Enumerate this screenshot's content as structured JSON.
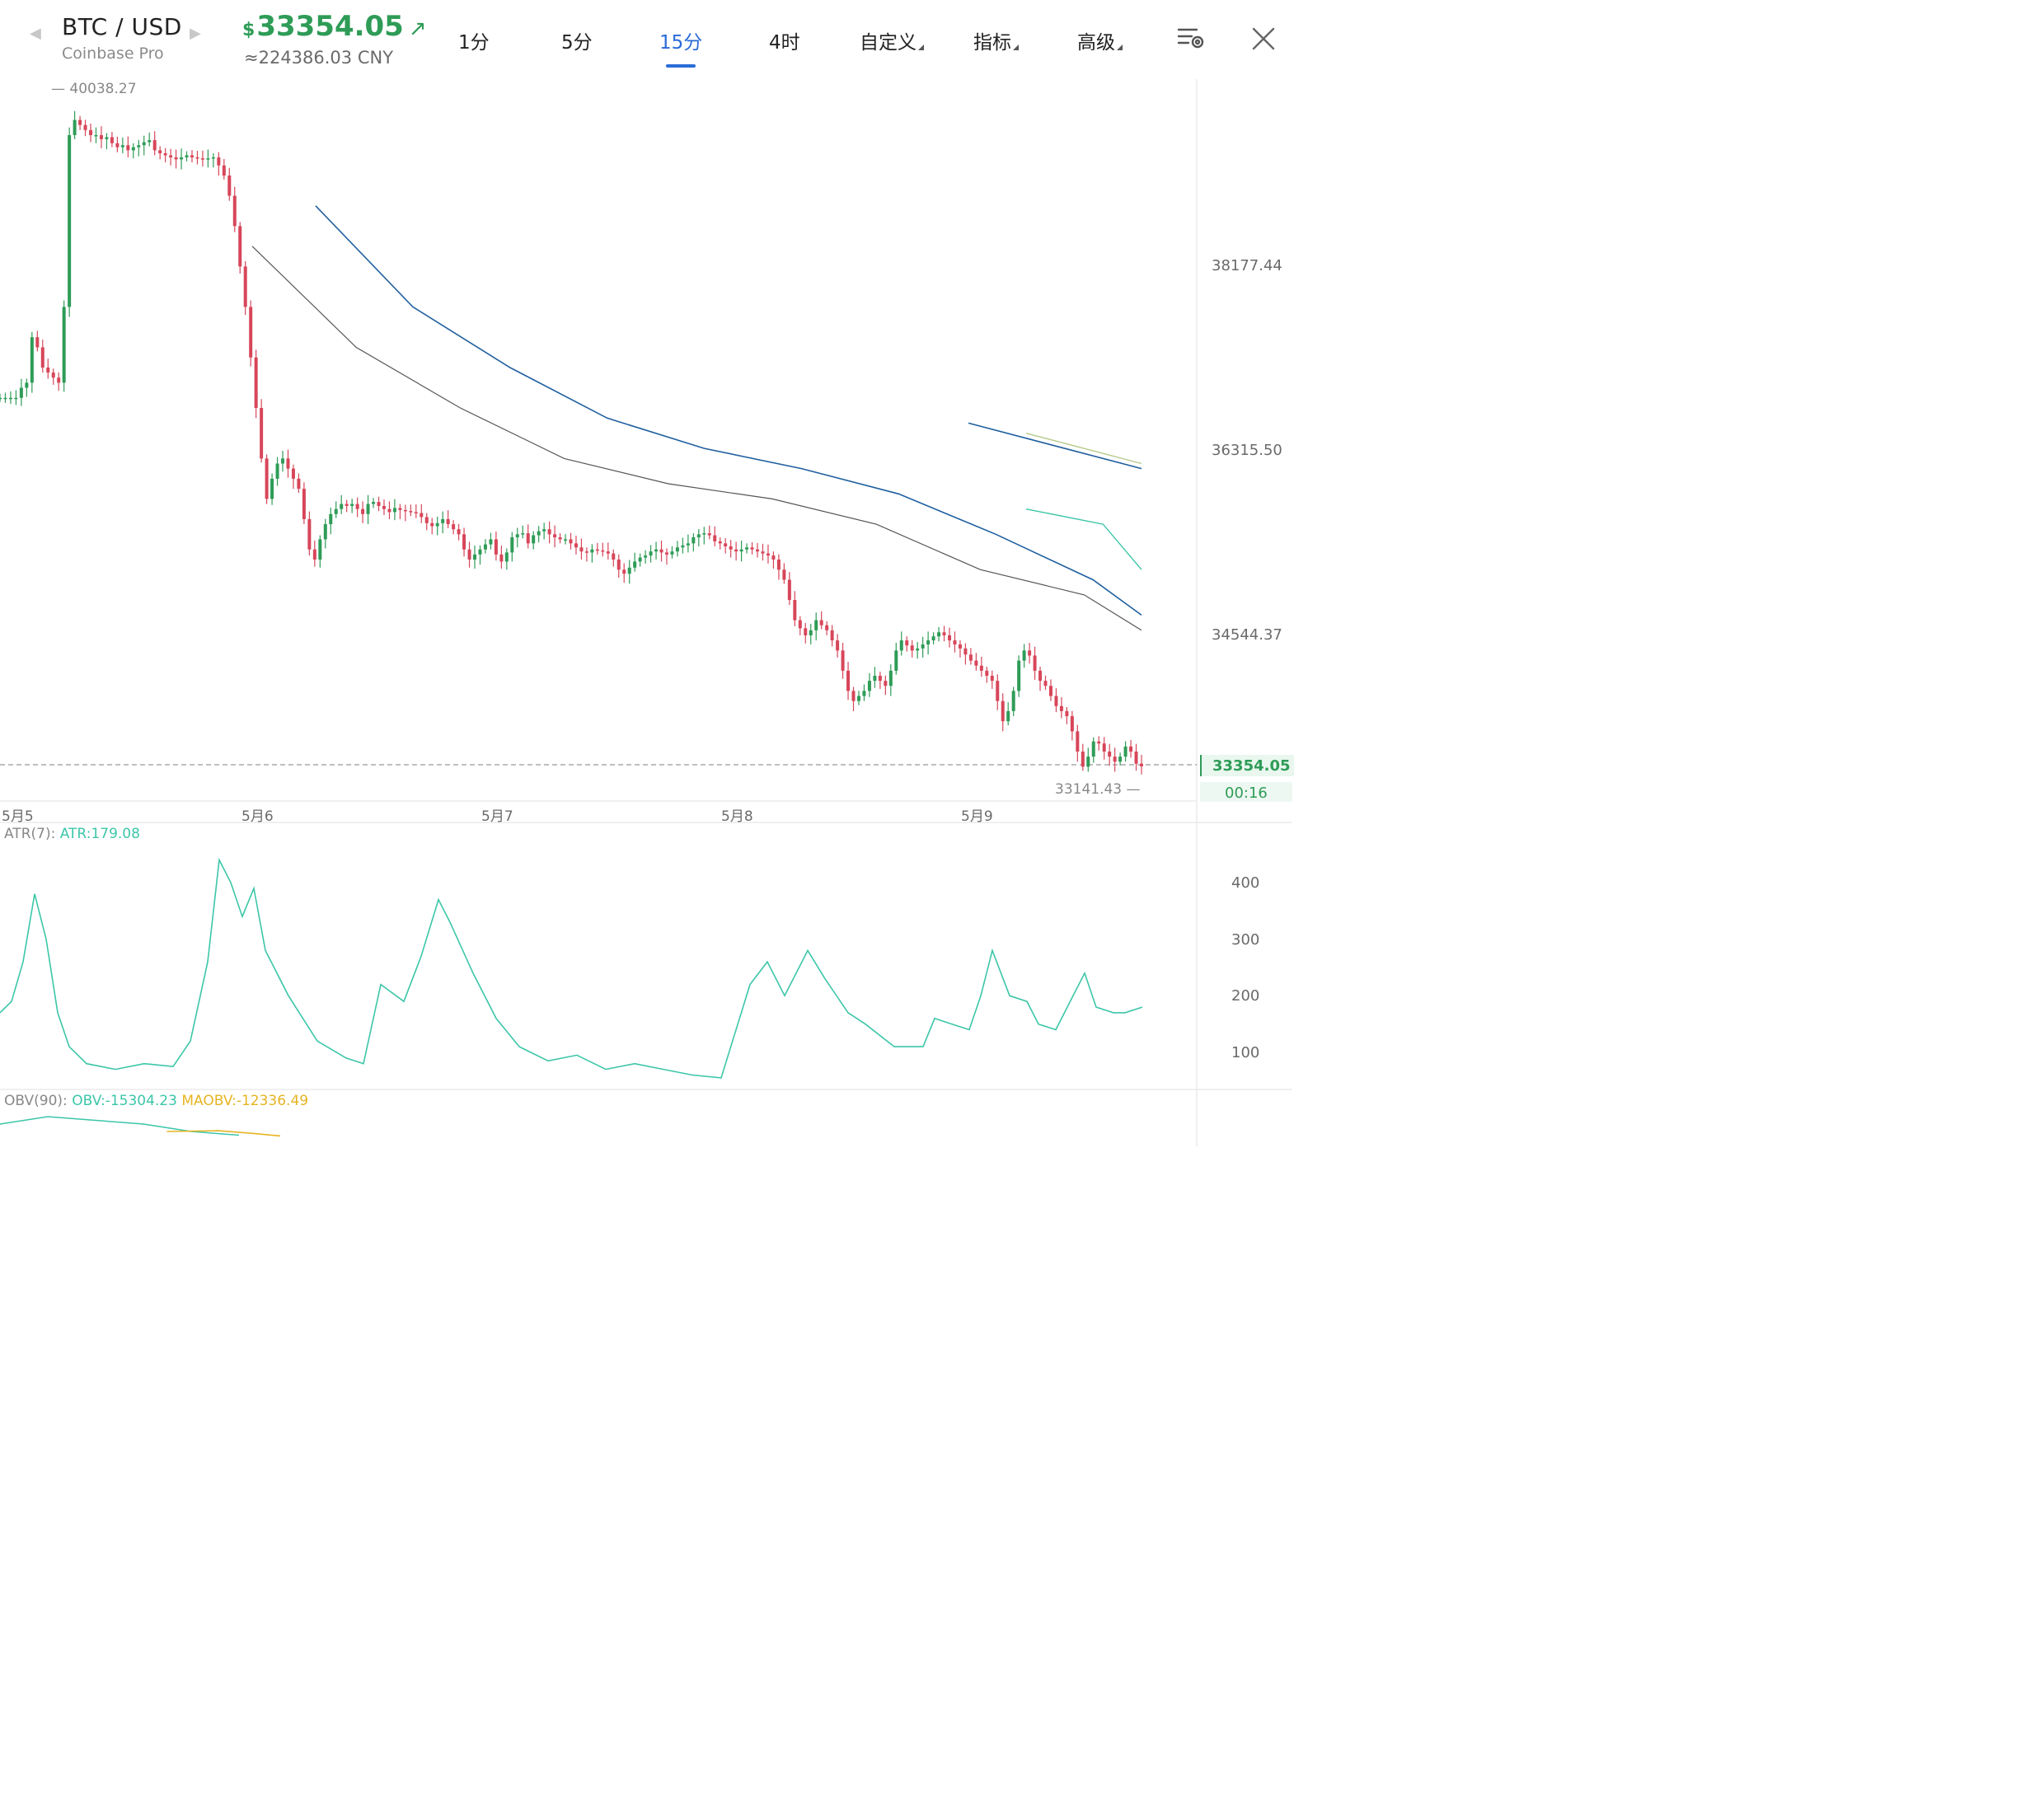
{
  "header": {
    "symbol": "BTC / USD",
    "exchange": "Coinbase Pro",
    "currency_sign": "$",
    "price": "33354.05",
    "price_color": "#2e9c57",
    "trend_icon": "arrow-up-right-icon",
    "cny_value": "≈224386.03 CNY"
  },
  "tabs": [
    {
      "label": "1分",
      "active": false
    },
    {
      "label": "5分",
      "active": false
    },
    {
      "label": "15分",
      "active": true
    },
    {
      "label": "4时",
      "active": false
    },
    {
      "label": "自定义",
      "active": false,
      "dropdown": true
    },
    {
      "label": "指标",
      "active": false,
      "dropdown": true
    },
    {
      "label": "高级",
      "active": false,
      "dropdown": true
    }
  ],
  "toolbar": {
    "settings_icon": "chart-settings-icon",
    "close_icon": "close-icon"
  },
  "colors": {
    "up": "#2e9c57",
    "down": "#d7465a",
    "accent": "#2a6cd6",
    "atr": "#3cc6a8",
    "maobv": "#e6b422",
    "ma_blue": "#1f5f9f",
    "ma_gray": "#555555"
  },
  "price_chart": {
    "high_label": "40038.27",
    "low_label": "33141.43",
    "current_price": "33354.05",
    "countdown": "00:16",
    "y_ticks": [
      "38177.44",
      "36315.50",
      "34544.37"
    ],
    "x_ticks": [
      "5月5",
      "5月6",
      "5月7",
      "5月8",
      "5月9"
    ]
  },
  "atr_panel": {
    "title": "ATR(7):",
    "value": "ATR:179.08",
    "y_ticks": [
      "400",
      "300",
      "200",
      "100"
    ]
  },
  "obv_panel": {
    "title": "OBV(90):",
    "obv": "OBV:-15304.23",
    "maobv": "MAOBV:-12336.49"
  },
  "chart_data": {
    "type": "candlestick",
    "ylim": [
      32600,
      40400
    ],
    "x_dates": [
      "5月5",
      "5月6",
      "5月7",
      "5月8",
      "5月9"
    ],
    "close_path": [
      [
        0,
        37000
      ],
      [
        1,
        37000
      ],
      [
        2,
        37000
      ],
      [
        3,
        37000
      ],
      [
        4,
        37100
      ],
      [
        5,
        37150
      ],
      [
        6,
        37600
      ],
      [
        7,
        37500
      ],
      [
        8,
        37300
      ],
      [
        9,
        37250
      ],
      [
        10,
        37200
      ],
      [
        11,
        37150
      ],
      [
        12,
        37900
      ],
      [
        13,
        39600
      ],
      [
        14,
        39750
      ],
      [
        15,
        39700
      ],
      [
        16,
        39650
      ],
      [
        17,
        39600
      ],
      [
        18,
        39600
      ],
      [
        19,
        39560
      ],
      [
        20,
        39580
      ],
      [
        21,
        39520
      ],
      [
        22,
        39480
      ],
      [
        23,
        39500
      ],
      [
        24,
        39450
      ],
      [
        25,
        39480
      ],
      [
        26,
        39500
      ],
      [
        27,
        39530
      ],
      [
        28,
        39550
      ],
      [
        29,
        39450
      ],
      [
        30,
        39420
      ],
      [
        31,
        39400
      ],
      [
        32,
        39380
      ],
      [
        33,
        39360
      ],
      [
        34,
        39380
      ],
      [
        35,
        39400
      ],
      [
        36,
        39380
      ],
      [
        37,
        39370
      ],
      [
        38,
        39360
      ],
      [
        39,
        39370
      ],
      [
        40,
        39380
      ],
      [
        41,
        39300
      ],
      [
        42,
        39200
      ],
      [
        43,
        39000
      ],
      [
        44,
        38700
      ],
      [
        45,
        38300
      ],
      [
        46,
        37900
      ],
      [
        47,
        37400
      ],
      [
        48,
        36900
      ],
      [
        49,
        36400
      ],
      [
        50,
        36000
      ],
      [
        51,
        36200
      ],
      [
        52,
        36350
      ],
      [
        53,
        36400
      ],
      [
        54,
        36300
      ],
      [
        55,
        36200
      ],
      [
        56,
        36100
      ],
      [
        57,
        35800
      ],
      [
        58,
        35500
      ],
      [
        59,
        35400
      ],
      [
        60,
        35600
      ],
      [
        61,
        35750
      ],
      [
        62,
        35850
      ],
      [
        63,
        35900
      ],
      [
        64,
        35950
      ],
      [
        65,
        35930
      ],
      [
        66,
        35950
      ],
      [
        67,
        35900
      ],
      [
        68,
        35850
      ],
      [
        69,
        35950
      ],
      [
        70,
        35970
      ],
      [
        71,
        35930
      ],
      [
        72,
        35900
      ],
      [
        73,
        35870
      ],
      [
        74,
        35910
      ],
      [
        75,
        35890
      ],
      [
        76,
        35880
      ],
      [
        77,
        35870
      ],
      [
        78,
        35860
      ],
      [
        79,
        35820
      ],
      [
        80,
        35760
      ],
      [
        81,
        35730
      ],
      [
        82,
        35760
      ],
      [
        83,
        35800
      ],
      [
        84,
        35750
      ],
      [
        85,
        35700
      ],
      [
        86,
        35650
      ],
      [
        87,
        35500
      ],
      [
        88,
        35400
      ],
      [
        89,
        35450
      ],
      [
        90,
        35500
      ],
      [
        91,
        35550
      ],
      [
        92,
        35600
      ],
      [
        93,
        35450
      ],
      [
        94,
        35380
      ],
      [
        95,
        35470
      ],
      [
        96,
        35620
      ],
      [
        97,
        35650
      ],
      [
        98,
        35660
      ],
      [
        99,
        35560
      ],
      [
        100,
        35640
      ],
      [
        101,
        35680
      ],
      [
        102,
        35700
      ],
      [
        103,
        35650
      ],
      [
        104,
        35620
      ],
      [
        105,
        35600
      ],
      [
        106,
        35600
      ],
      [
        107,
        35560
      ],
      [
        108,
        35520
      ],
      [
        109,
        35480
      ],
      [
        110,
        35470
      ],
      [
        111,
        35500
      ],
      [
        112,
        35490
      ],
      [
        113,
        35480
      ],
      [
        114,
        35460
      ],
      [
        115,
        35400
      ],
      [
        116,
        35300
      ],
      [
        117,
        35260
      ],
      [
        118,
        35320
      ],
      [
        119,
        35380
      ],
      [
        120,
        35420
      ],
      [
        121,
        35440
      ],
      [
        122,
        35480
      ],
      [
        123,
        35500
      ],
      [
        124,
        35470
      ],
      [
        125,
        35450
      ],
      [
        126,
        35480
      ],
      [
        127,
        35520
      ],
      [
        128,
        35540
      ],
      [
        129,
        35560
      ],
      [
        130,
        35620
      ],
      [
        131,
        35650
      ],
      [
        132,
        35660
      ],
      [
        133,
        35640
      ],
      [
        134,
        35580
      ],
      [
        135,
        35560
      ],
      [
        136,
        35530
      ],
      [
        137,
        35500
      ],
      [
        138,
        35480
      ],
      [
        139,
        35500
      ],
      [
        140,
        35520
      ],
      [
        141,
        35500
      ],
      [
        142,
        35480
      ],
      [
        143,
        35460
      ],
      [
        144,
        35440
      ],
      [
        145,
        35400
      ],
      [
        146,
        35300
      ],
      [
        147,
        35200
      ],
      [
        148,
        35000
      ],
      [
        149,
        34800
      ],
      [
        150,
        34720
      ],
      [
        151,
        34650
      ],
      [
        152,
        34700
      ],
      [
        153,
        34800
      ],
      [
        154,
        34750
      ],
      [
        155,
        34700
      ],
      [
        156,
        34600
      ],
      [
        157,
        34500
      ],
      [
        158,
        34300
      ],
      [
        159,
        34100
      ],
      [
        160,
        34000
      ],
      [
        161,
        34050
      ],
      [
        162,
        34100
      ],
      [
        163,
        34200
      ],
      [
        164,
        34250
      ],
      [
        165,
        34200
      ],
      [
        166,
        34150
      ],
      [
        167,
        34300
      ],
      [
        168,
        34500
      ],
      [
        169,
        34600
      ],
      [
        170,
        34550
      ],
      [
        171,
        34500
      ],
      [
        172,
        34520
      ],
      [
        173,
        34560
      ],
      [
        174,
        34600
      ],
      [
        175,
        34640
      ],
      [
        176,
        34680
      ],
      [
        177,
        34650
      ],
      [
        178,
        34600
      ],
      [
        179,
        34560
      ],
      [
        180,
        34520
      ],
      [
        181,
        34460
      ],
      [
        182,
        34400
      ],
      [
        183,
        34350
      ],
      [
        184,
        34300
      ],
      [
        185,
        34250
      ],
      [
        186,
        34200
      ],
      [
        187,
        34000
      ],
      [
        188,
        33800
      ],
      [
        189,
        33900
      ],
      [
        190,
        34100
      ],
      [
        191,
        34400
      ],
      [
        192,
        34500
      ],
      [
        193,
        34450
      ],
      [
        194,
        34300
      ],
      [
        195,
        34200
      ],
      [
        196,
        34150
      ],
      [
        197,
        34050
      ],
      [
        198,
        33950
      ],
      [
        199,
        33900
      ],
      [
        200,
        33850
      ],
      [
        201,
        33700
      ],
      [
        202,
        33500
      ],
      [
        203,
        33350
      ],
      [
        204,
        33450
      ],
      [
        205,
        33600
      ],
      [
        206,
        33580
      ],
      [
        207,
        33500
      ],
      [
        208,
        33450
      ],
      [
        209,
        33400
      ],
      [
        210,
        33450
      ],
      [
        211,
        33550
      ],
      [
        212,
        33500
      ],
      [
        213,
        33380
      ],
      [
        214,
        33354
      ]
    ],
    "ma_blue_1": [
      [
        0,
        38900
      ],
      [
        20,
        37900
      ],
      [
        40,
        37300
      ],
      [
        60,
        36800
      ],
      [
        80,
        36500
      ],
      [
        100,
        36300
      ],
      [
        120,
        36050
      ],
      [
        140,
        35650
      ],
      [
        160,
        35200
      ],
      [
        170,
        34850
      ]
    ],
    "ma_gray": [
      [
        0,
        38500
      ],
      [
        20,
        37500
      ],
      [
        40,
        36900
      ],
      [
        60,
        36400
      ],
      [
        80,
        36150
      ],
      [
        100,
        36000
      ],
      [
        120,
        35750
      ],
      [
        140,
        35300
      ],
      [
        160,
        35050
      ],
      [
        171,
        34700
      ]
    ],
    "ma_blue_2": [
      [
        0,
        36750
      ],
      [
        30,
        36300
      ]
    ],
    "ma_olive": [
      [
        0,
        36650
      ],
      [
        20,
        36350
      ]
    ],
    "ma_teal": [
      [
        0,
        35900
      ],
      [
        20,
        35750
      ],
      [
        30,
        35300
      ]
    ],
    "atr_path": [
      [
        0,
        170
      ],
      [
        2,
        190
      ],
      [
        4,
        260
      ],
      [
        6,
        380
      ],
      [
        8,
        300
      ],
      [
        10,
        170
      ],
      [
        12,
        110
      ],
      [
        15,
        80
      ],
      [
        20,
        70
      ],
      [
        25,
        80
      ],
      [
        30,
        75
      ],
      [
        33,
        120
      ],
      [
        36,
        260
      ],
      [
        38,
        440
      ],
      [
        40,
        400
      ],
      [
        42,
        340
      ],
      [
        44,
        390
      ],
      [
        46,
        280
      ],
      [
        50,
        200
      ],
      [
        55,
        120
      ],
      [
        60,
        90
      ],
      [
        63,
        80
      ],
      [
        66,
        220
      ],
      [
        70,
        190
      ],
      [
        73,
        270
      ],
      [
        76,
        370
      ],
      [
        78,
        330
      ],
      [
        82,
        240
      ],
      [
        86,
        160
      ],
      [
        90,
        110
      ],
      [
        95,
        85
      ],
      [
        100,
        95
      ],
      [
        105,
        70
      ],
      [
        110,
        80
      ],
      [
        115,
        70
      ],
      [
        120,
        60
      ],
      [
        125,
        55
      ],
      [
        130,
        220
      ],
      [
        133,
        260
      ],
      [
        136,
        200
      ],
      [
        140,
        280
      ],
      [
        143,
        230
      ],
      [
        147,
        170
      ],
      [
        150,
        150
      ],
      [
        155,
        110
      ],
      [
        160,
        110
      ],
      [
        162,
        160
      ],
      [
        165,
        150
      ],
      [
        168,
        140
      ],
      [
        170,
        200
      ],
      [
        172,
        280
      ],
      [
        175,
        200
      ],
      [
        178,
        190
      ],
      [
        180,
        150
      ],
      [
        183,
        140
      ],
      [
        186,
        200
      ],
      [
        188,
        240
      ],
      [
        190,
        180
      ],
      [
        193,
        170
      ],
      [
        195,
        170
      ],
      [
        198,
        180
      ]
    ],
    "obv_path": [
      [
        0,
        60
      ],
      [
        10,
        80
      ],
      [
        20,
        70
      ],
      [
        30,
        60
      ],
      [
        40,
        40
      ],
      [
        50,
        30
      ]
    ],
    "maobv_path": [
      [
        15,
        40
      ],
      [
        30,
        42
      ],
      [
        40,
        35
      ],
      [
        48,
        28
      ]
    ]
  }
}
